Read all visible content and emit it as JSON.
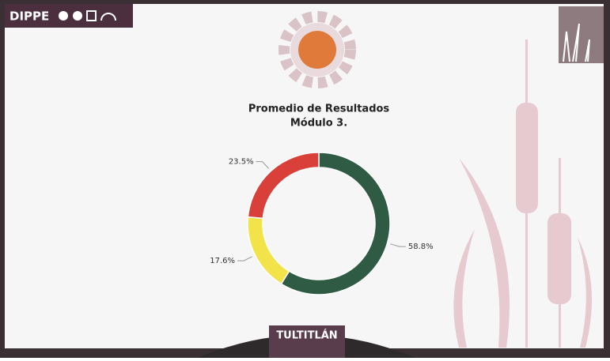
{
  "header": {
    "brand": "DIPPE"
  },
  "chart_data": {
    "type": "pie",
    "title": "Promedio de Resultados",
    "subtitle": "Módulo 3.",
    "values": [
      58.8,
      17.6,
      23.5
    ],
    "value_labels": [
      "58.8%",
      "17.6%",
      "23.5%"
    ],
    "colors": [
      "#2f5a44",
      "#f2e34a",
      "#d9403a"
    ],
    "donut": true
  },
  "footer": {
    "brand": "TULTITLÁN"
  }
}
